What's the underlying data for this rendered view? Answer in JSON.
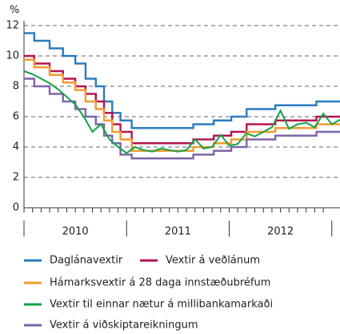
{
  "chart_data": {
    "type": "line",
    "y_label": "%",
    "xlim": [
      2010.0,
      2013.08
    ],
    "ylim": [
      0,
      12
    ],
    "yticks": [
      0,
      2,
      4,
      6,
      8,
      10,
      12
    ],
    "xticks": [
      {
        "value": 2010.5,
        "label": "2010"
      },
      {
        "value": 2011.5,
        "label": "2011"
      },
      {
        "value": 2012.5,
        "label": "2012"
      }
    ],
    "grid": true,
    "legend": "bottom",
    "series": [
      {
        "name": "Daglánavextir",
        "color": "#2b7bbf",
        "step": true,
        "x": [
          2010.0,
          2010.1,
          2010.25,
          2010.38,
          2010.5,
          2010.6,
          2010.7,
          2010.78,
          2010.86,
          2010.94,
          2011.05,
          2011.65,
          2011.85,
          2012.02,
          2012.17,
          2012.45,
          2012.85,
          2013.08
        ],
        "values": [
          11.5,
          11,
          10.5,
          10,
          9.5,
          8.5,
          8,
          7,
          6.25,
          5.75,
          5.25,
          5.5,
          5.75,
          6,
          6.5,
          6.75,
          7,
          7
        ]
      },
      {
        "name": "Vextir á veðlánum",
        "color": "#b5134f",
        "step": true,
        "x": [
          2010.0,
          2010.1,
          2010.25,
          2010.38,
          2010.5,
          2010.6,
          2010.7,
          2010.78,
          2010.86,
          2010.94,
          2011.05,
          2011.65,
          2011.85,
          2012.02,
          2012.17,
          2012.45,
          2012.85,
          2013.08
        ],
        "values": [
          10,
          9.5,
          9,
          8.5,
          8,
          7.5,
          7,
          6.25,
          5.5,
          5,
          4.25,
          4.5,
          4.75,
          5,
          5.5,
          5.75,
          6,
          6
        ]
      },
      {
        "name": "Hámarksvextir á 28 daga innstæðubréfum",
        "color": "#f59a2f",
        "step": true,
        "x": [
          2010.0,
          2010.1,
          2010.25,
          2010.38,
          2010.5,
          2010.6,
          2010.7,
          2010.78,
          2010.86,
          2010.94,
          2011.05,
          2011.65,
          2011.85,
          2012.02,
          2012.17,
          2012.45,
          2012.85,
          2013.08
        ],
        "values": [
          9.75,
          9.25,
          8.75,
          8.25,
          7.75,
          7,
          6.5,
          5.75,
          5,
          4.5,
          3.75,
          4,
          4.25,
          4.5,
          5,
          5.25,
          5.5,
          5.5
        ]
      },
      {
        "name": "Vextir til einnar nætur á millibankamarkaði",
        "color": "#13a24a",
        "step": false,
        "x": [
          2010.0,
          2010.083,
          2010.167,
          2010.25,
          2010.333,
          2010.417,
          2010.5,
          2010.583,
          2010.667,
          2010.75,
          2010.833,
          2010.917,
          2011.0,
          2011.083,
          2011.167,
          2011.25,
          2011.333,
          2011.417,
          2011.5,
          2011.583,
          2011.667,
          2011.75,
          2011.833,
          2011.917,
          2012.0,
          2012.083,
          2012.167,
          2012.25,
          2012.333,
          2012.417,
          2012.5,
          2012.583,
          2012.667,
          2012.75,
          2012.833,
          2012.917,
          2013.0,
          2013.08
        ],
        "values": [
          9,
          8.8,
          8.5,
          8.2,
          7.8,
          7.3,
          6.8,
          6,
          5,
          5.5,
          4.5,
          4,
          3.6,
          4,
          3.8,
          3.7,
          3.9,
          3.8,
          3.7,
          3.8,
          4.5,
          3.9,
          4,
          4.8,
          4.1,
          4.2,
          4.9,
          4.7,
          5.0,
          5.3,
          6.4,
          5.2,
          5.5,
          5.6,
          5.3,
          6.2,
          5.5,
          5.8
        ]
      },
      {
        "name": "Vextir á viðskiptareikningum",
        "color": "#7e65a8",
        "step": true,
        "x": [
          2010.0,
          2010.1,
          2010.25,
          2010.38,
          2010.5,
          2010.6,
          2010.7,
          2010.78,
          2010.86,
          2010.94,
          2011.05,
          2011.65,
          2011.85,
          2012.02,
          2012.17,
          2012.45,
          2012.85,
          2013.08
        ],
        "values": [
          8.5,
          8,
          7.5,
          7,
          6.5,
          6,
          5.5,
          4.75,
          4.25,
          3.5,
          3.25,
          3.5,
          3.75,
          4,
          4.5,
          4.75,
          5,
          5
        ]
      }
    ]
  }
}
